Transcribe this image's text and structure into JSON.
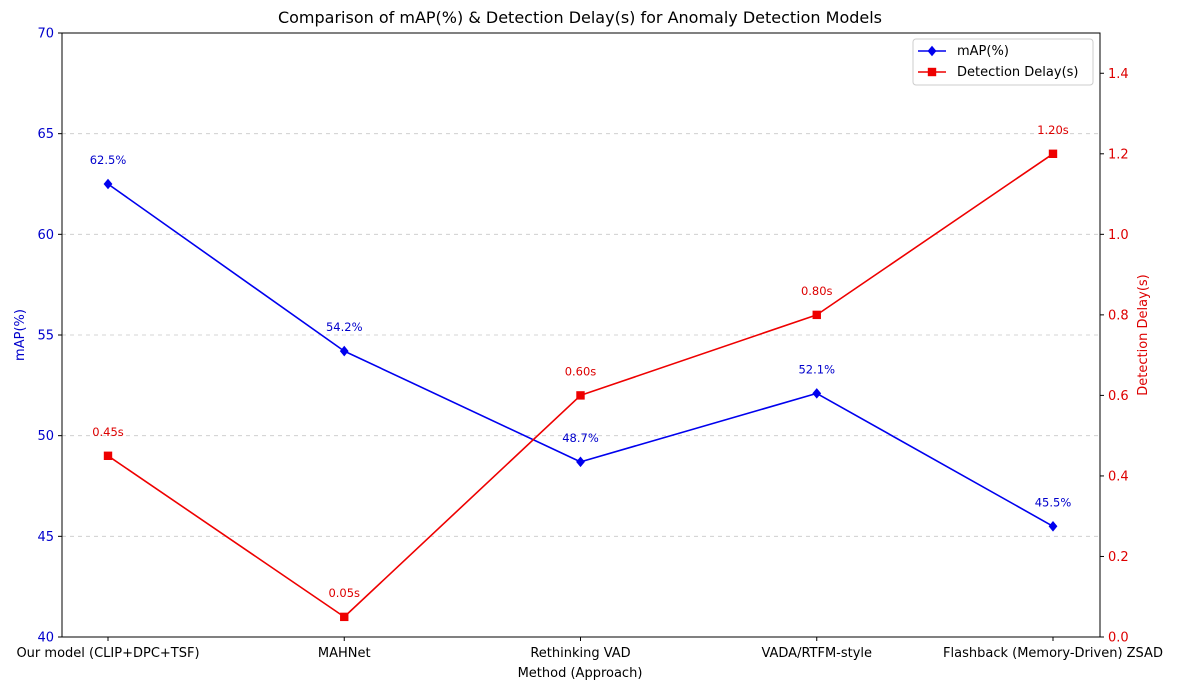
{
  "chart_data": {
    "type": "line",
    "title": "Comparison of mAP(%) & Detection Delay(s) for Anomaly Detection Models",
    "xlabel": "Method (Approach)",
    "categories": [
      "Our model (CLIP+DPC+TSF)",
      "MAHNet",
      "Rethinking VAD",
      "VADA/RTFM-style",
      "Flashback (Memory-Driven) ZSAD"
    ],
    "y_left": {
      "label": "mAP(%)",
      "ylim": [
        40,
        70
      ],
      "ticks": [
        40,
        45,
        50,
        55,
        60,
        65,
        70
      ],
      "tick_labels": [
        "40",
        "45",
        "50",
        "55",
        "60",
        "65",
        "70"
      ],
      "color": "#0000cc"
    },
    "y_right": {
      "label": "Detection Delay(s)",
      "ylim": [
        0,
        1.5
      ],
      "ticks": [
        0,
        0.2,
        0.4,
        0.6,
        0.8,
        1.0,
        1.2,
        1.4
      ],
      "tick_labels": [
        "0.0",
        "0.2",
        "0.4",
        "0.6",
        "0.8",
        "1.0",
        "1.2",
        "1.4"
      ],
      "color": "#dd0000"
    },
    "series": [
      {
        "name": "mAP(%)",
        "axis": "left",
        "color": "#0000ee",
        "marker": "diamond",
        "values": [
          62.5,
          54.2,
          48.7,
          52.1,
          45.5
        ],
        "labels": [
          "62.5%",
          "54.2%",
          "48.7%",
          "52.1%",
          "45.5%"
        ]
      },
      {
        "name": "Detection Delay(s)",
        "axis": "right",
        "color": "#ee0000",
        "marker": "square",
        "values": [
          0.45,
          0.05,
          0.6,
          0.8,
          1.2
        ],
        "labels": [
          "0.45s",
          "0.05s",
          "0.60s",
          "0.80s",
          "1.20s"
        ]
      }
    ],
    "grid": "horizontal-dashed",
    "legend": "top-right"
  }
}
